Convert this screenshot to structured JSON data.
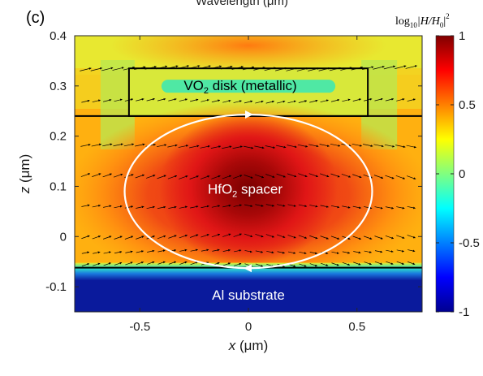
{
  "panel_label": "(c)",
  "top_clipped_text": "Wavelength (μm)",
  "colorbar": {
    "title_main": "log",
    "title_sub": "10",
    "title_expr": "|H/H",
    "title_expr_sub": "0",
    "title_expr_end": "|",
    "title_sup": "2",
    "ticks": [
      "1",
      "0.5",
      "0",
      "-0.5",
      "-1"
    ],
    "range": [
      -1,
      1
    ],
    "colormap": "jet"
  },
  "annotations": {
    "disk_main": "VO",
    "disk_sub": "2",
    "disk_rest": " disk (metallic)",
    "spacer_main": "HfO",
    "spacer_sub": "2",
    "spacer_rest": " spacer",
    "substrate": "Al substrate"
  },
  "chart_data": {
    "type": "heatmap",
    "title": "",
    "xlabel_var": "x",
    "xlabel_unit": " (μm)",
    "ylabel_var": "z",
    "ylabel_unit": " (μm)",
    "xlim": [
      -0.8,
      0.8
    ],
    "ylim": [
      -0.15,
      0.4
    ],
    "x_ticks": [
      -0.5,
      0,
      0.5
    ],
    "x_tick_labels": [
      "-0.5",
      "0",
      "0.5"
    ],
    "y_ticks": [
      -0.1,
      0,
      0.1,
      0.2,
      0.3,
      0.4
    ],
    "y_tick_labels": [
      "-0.1",
      "0",
      "0.1",
      "0.2",
      "0.3",
      "0.4"
    ],
    "field": "log10(|H/H0|^2)",
    "colors": {
      "dark_red": "#7f0000",
      "red": "#e8161a",
      "orange": "#ff8000",
      "yellow": "#eef02a",
      "cyan": "#2de8c8",
      "blue": "#0a1a9c",
      "loop": "#ffffff",
      "outline": "#000000"
    },
    "structures": {
      "vo2_disk": {
        "x": [
          -0.55,
          0.55
        ],
        "z": [
          0.24,
          0.335
        ]
      },
      "substrate_top_z": -0.062,
      "loop_center": [
        0.0,
        0.09
      ],
      "loop_radii": [
        0.57,
        0.153
      ]
    }
  }
}
